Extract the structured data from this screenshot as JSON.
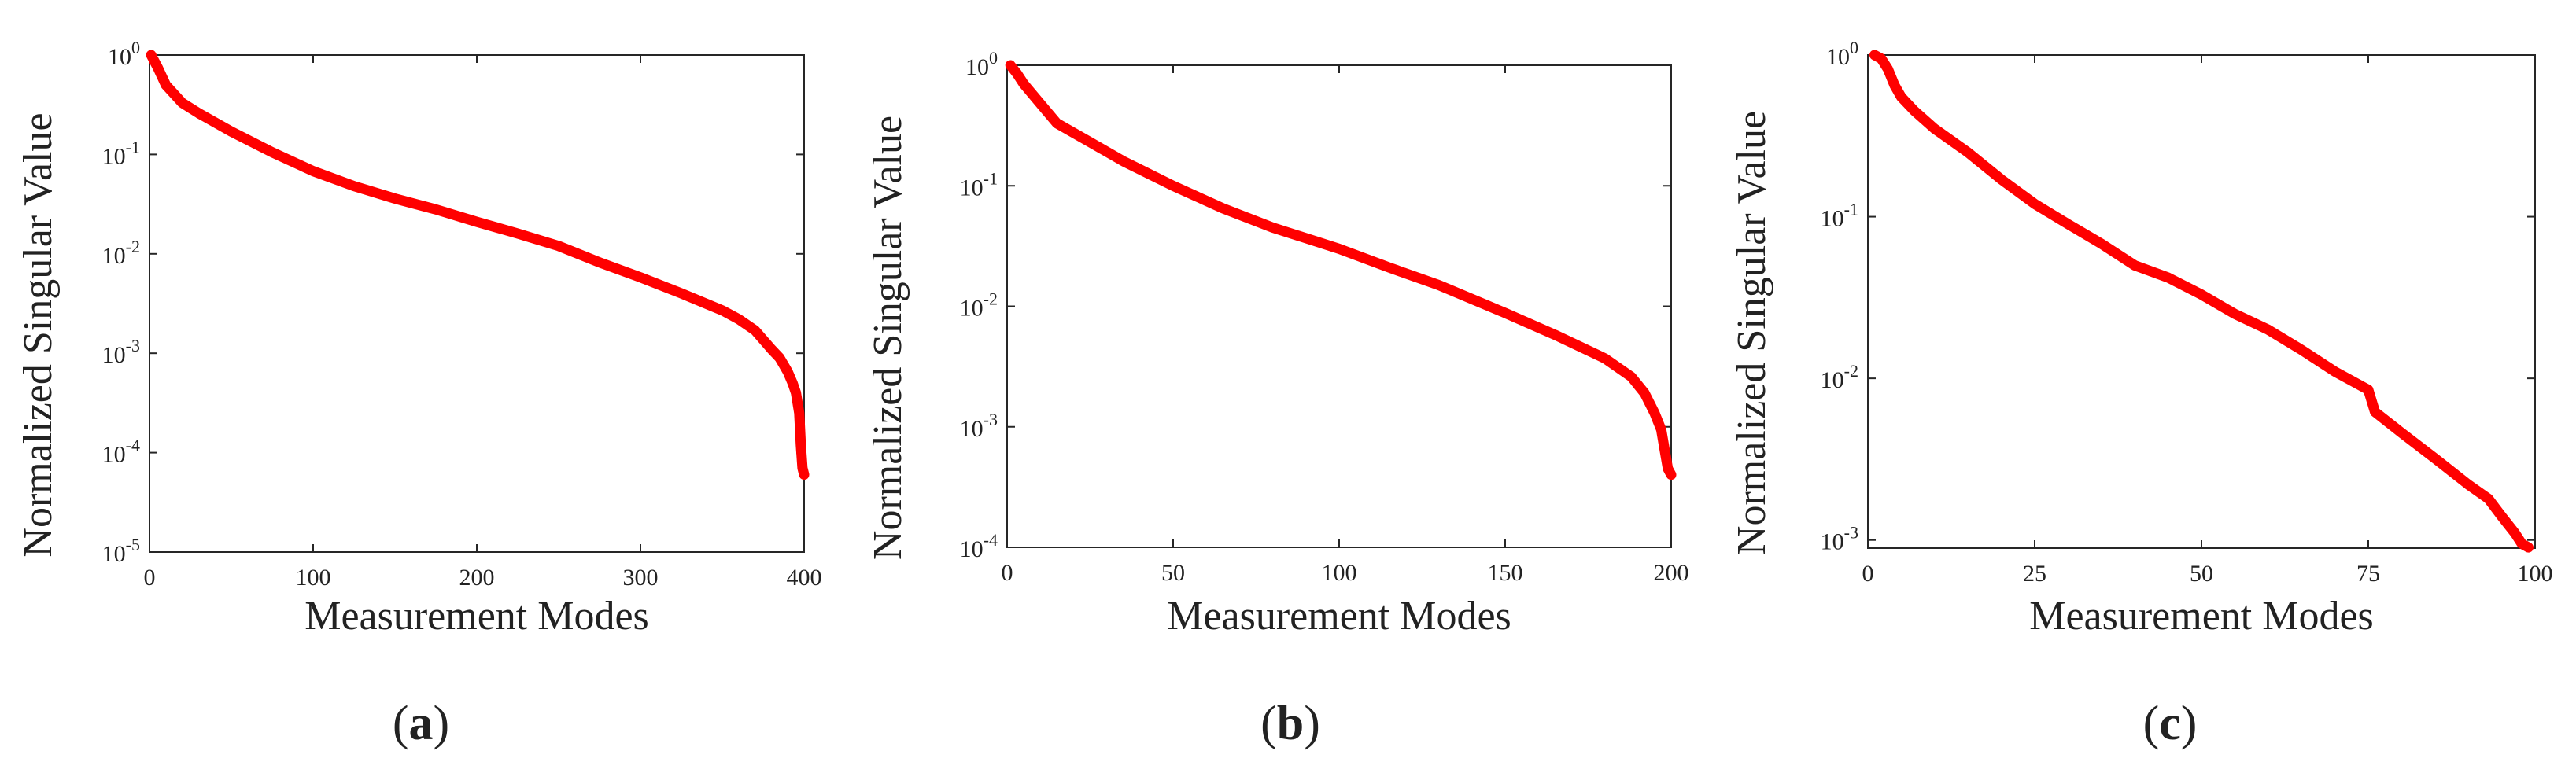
{
  "chart_data": [
    {
      "type": "line",
      "caption": "(a)",
      "xlabel": "Measurement Modes",
      "ylabel": "Normalized Singular Value",
      "yscale": "log",
      "xlim": [
        0,
        400
      ],
      "ylim_exp": [
        -5,
        0
      ],
      "xticks": [
        0,
        100,
        200,
        300,
        400
      ],
      "yticks": [
        {
          "base": "10",
          "exp": "0",
          "value": 0
        },
        {
          "base": "10",
          "exp": "-1",
          "value": -1
        },
        {
          "base": "10",
          "exp": "-2",
          "value": -2
        },
        {
          "base": "10",
          "exp": "-3",
          "value": -3
        },
        {
          "base": "10",
          "exp": "-4",
          "value": -4
        },
        {
          "base": "10",
          "exp": "-5",
          "value": -5
        }
      ],
      "color": "#ff0000",
      "series": [
        {
          "name": "Normalized singular values",
          "x": [
            1,
            5,
            10,
            20,
            30,
            50,
            75,
            100,
            125,
            150,
            175,
            200,
            225,
            250,
            275,
            300,
            325,
            350,
            360,
            370,
            380,
            385,
            390,
            393,
            395,
            397,
            398,
            399,
            400
          ],
          "y": [
            1,
            0.75,
            0.5,
            0.33,
            0.26,
            0.17,
            0.105,
            0.068,
            0.048,
            0.036,
            0.028,
            0.021,
            0.016,
            0.012,
            0.0082,
            0.0058,
            0.004,
            0.0027,
            0.0022,
            0.0017,
            0.0011,
            0.0009,
            0.00065,
            0.0005,
            0.0004,
            0.00025,
            0.00012,
            7e-05,
            6e-05
          ]
        }
      ]
    },
    {
      "type": "line",
      "caption": "(b)",
      "xlabel": "Measurement Modes",
      "ylabel": "Normalized Singular Value",
      "yscale": "log",
      "xlim": [
        0,
        200
      ],
      "ylim_exp": [
        -4,
        0
      ],
      "xticks": [
        0,
        50,
        100,
        150,
        200
      ],
      "yticks": [
        {
          "base": "10",
          "exp": "0",
          "value": 0
        },
        {
          "base": "10",
          "exp": "-1",
          "value": -1
        },
        {
          "base": "10",
          "exp": "-2",
          "value": -2
        },
        {
          "base": "10",
          "exp": "-3",
          "value": -3
        },
        {
          "base": "10",
          "exp": "-4",
          "value": -4
        }
      ],
      "color": "#ff0000",
      "series": [
        {
          "name": "Normalized singular values",
          "x": [
            1,
            3,
            5,
            10,
            15,
            25,
            35,
            50,
            65,
            80,
            100,
            115,
            130,
            150,
            165,
            180,
            188,
            192,
            195,
            197,
            198,
            199,
            200
          ],
          "y": [
            1,
            0.85,
            0.7,
            0.48,
            0.33,
            0.23,
            0.16,
            0.1,
            0.065,
            0.045,
            0.03,
            0.021,
            0.015,
            0.0088,
            0.0058,
            0.0037,
            0.0026,
            0.0019,
            0.0013,
            0.00095,
            0.00065,
            0.00045,
            0.0004
          ]
        }
      ]
    },
    {
      "type": "line",
      "caption": "(c)",
      "xlabel": "Measurement Modes",
      "ylabel": "Normalized Singular Value",
      "yscale": "log",
      "xlim": [
        0,
        100
      ],
      "ylim_exp": [
        -3.05,
        0
      ],
      "xticks": [
        0,
        25,
        50,
        75,
        100
      ],
      "yticks": [
        {
          "base": "10",
          "exp": "0",
          "value": 0
        },
        {
          "base": "10",
          "exp": "-1",
          "value": -1
        },
        {
          "base": "10",
          "exp": "-2",
          "value": -2
        },
        {
          "base": "10",
          "exp": "-3",
          "value": -3
        }
      ],
      "color": "#ff0000",
      "series": [
        {
          "name": "Normalized singular values",
          "x": [
            1,
            2,
            3,
            4,
            5,
            7,
            10,
            15,
            20,
            25,
            30,
            35,
            40,
            45,
            50,
            55,
            60,
            65,
            70,
            75,
            76,
            80,
            85,
            90,
            93,
            95,
            97,
            98,
            99
          ],
          "y": [
            1,
            0.95,
            0.82,
            0.65,
            0.55,
            0.45,
            0.35,
            0.25,
            0.17,
            0.12,
            0.09,
            0.068,
            0.05,
            0.042,
            0.033,
            0.025,
            0.02,
            0.015,
            0.011,
            0.0085,
            0.0062,
            0.0046,
            0.0032,
            0.0022,
            0.0018,
            0.0014,
            0.0011,
            0.00095,
            0.0009
          ]
        }
      ]
    }
  ]
}
